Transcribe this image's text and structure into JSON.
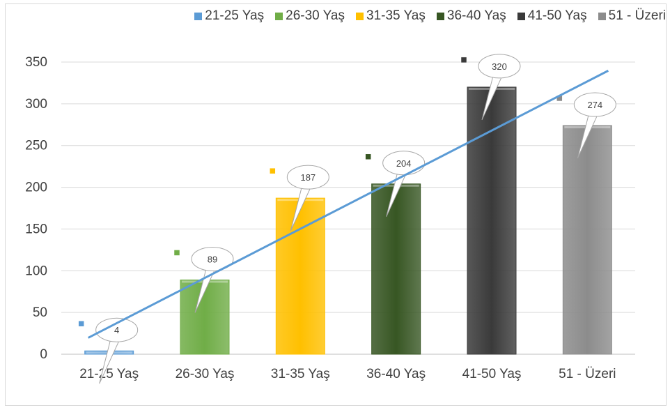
{
  "chart_data": {
    "type": "bar",
    "categories": [
      "21-25 Yaş",
      "26-30 Yaş",
      "31-35 Yaş",
      "36-40 Yaş",
      "41-50 Yaş",
      "51 - Üzeri"
    ],
    "values": [
      4,
      89,
      187,
      204,
      320,
      274
    ],
    "data_labels": [
      "4",
      "89",
      "187",
      "204",
      "320",
      "274"
    ],
    "colors": [
      "#5b9bd5",
      "#70ad47",
      "#ffc000",
      "#375623",
      "#3a3a3a",
      "#8c8c8c"
    ],
    "legend": [
      "21-25 Yaş",
      "26-30 Yaş",
      "31-35 Yaş",
      "36-40 Yaş",
      "41-50 Yaş",
      "51 - Üzeri"
    ],
    "legend_position": "top",
    "y_ticks": [
      "0",
      "50",
      "100",
      "150",
      "200",
      "250",
      "300",
      "350"
    ],
    "ylim": [
      0,
      350
    ],
    "grid": true,
    "trendline": {
      "type": "linear",
      "color": "#5b9bd5"
    },
    "title": "",
    "xlabel": "",
    "ylabel": ""
  }
}
